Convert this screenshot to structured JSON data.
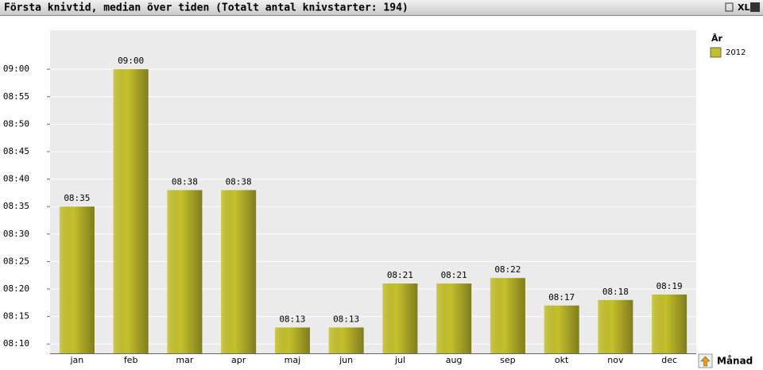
{
  "chart_data": {
    "type": "bar",
    "title": "Första knivtid, median över tiden (Totalt antal knivstarter: 194)",
    "toolbar_text": "XL",
    "categories": [
      "jan",
      "feb",
      "mar",
      "apr",
      "maj",
      "jun",
      "jul",
      "aug",
      "sep",
      "okt",
      "nov",
      "dec"
    ],
    "series": [
      {
        "name": "2012",
        "color": "#c4c02c",
        "values": [
          515,
          540,
          518,
          518,
          493,
          493,
          501,
          501,
          502,
          497,
          498,
          499
        ],
        "value_labels": [
          "08:35",
          "09:00",
          "08:38",
          "08:38",
          "08:13",
          "08:13",
          "08:21",
          "08:21",
          "08:22",
          "08:17",
          "08:18",
          "08:19"
        ]
      }
    ],
    "legend_title": "År",
    "x_label": "Månad",
    "ylim": [
      488.3,
      547.1
    ],
    "yticks": [
      {
        "value": 490,
        "label": "08:10"
      },
      {
        "value": 495,
        "label": "08:15"
      },
      {
        "value": 500,
        "label": "08:20"
      },
      {
        "value": 505,
        "label": "08:25"
      },
      {
        "value": 510,
        "label": "08:30"
      },
      {
        "value": 515,
        "label": "08:35"
      },
      {
        "value": 520,
        "label": "08:40"
      },
      {
        "value": 525,
        "label": "08:45"
      },
      {
        "value": 530,
        "label": "08:50"
      },
      {
        "value": 535,
        "label": "08:55"
      },
      {
        "value": 540,
        "label": "09:00"
      }
    ],
    "grid": true
  }
}
